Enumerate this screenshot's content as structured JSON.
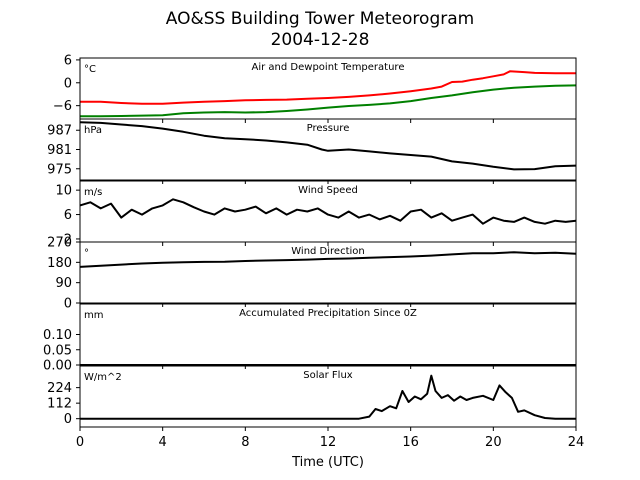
{
  "title": {
    "line1": "AO&SS Building Tower Meteorogram",
    "line2": "2004-12-28"
  },
  "x_axis": {
    "label": "Time (UTC)",
    "range": [
      0,
      24
    ],
    "ticks": [
      0,
      4,
      8,
      12,
      16,
      20,
      24
    ],
    "tick_labels": [
      "0",
      "4",
      "8",
      "12",
      "16",
      "20",
      "24"
    ]
  },
  "colors": {
    "temperature": "#ff0000",
    "dewpoint": "#008000",
    "line": "#000000"
  },
  "chart_data": [
    {
      "type": "line",
      "title": "Air and Dewpoint Temperature",
      "unit_label": "°C",
      "ylim": [
        -9.5,
        6.5
      ],
      "yticks": [
        -6,
        0,
        6
      ],
      "ytick_labels": [
        "−6",
        "0",
        "6"
      ],
      "series": [
        {
          "color": "#ff0000",
          "x": [
            0,
            1,
            2,
            3,
            4,
            5,
            6,
            7,
            8,
            9,
            10,
            11,
            12,
            13,
            14,
            15,
            16,
            17,
            17.5,
            18,
            18.5,
            19,
            19.5,
            20,
            20.5,
            20.8,
            21.5,
            22,
            23,
            24
          ],
          "values": [
            -5.0,
            -5.0,
            -5.3,
            -5.5,
            -5.5,
            -5.2,
            -5.0,
            -4.8,
            -4.6,
            -4.5,
            -4.4,
            -4.2,
            -4.0,
            -3.7,
            -3.3,
            -2.8,
            -2.2,
            -1.5,
            -1.0,
            0.2,
            0.3,
            0.8,
            1.2,
            1.7,
            2.2,
            3.0,
            2.8,
            2.6,
            2.5,
            2.5
          ]
        },
        {
          "color": "#008000",
          "x": [
            0,
            1,
            2,
            3,
            4,
            5,
            6,
            7,
            8,
            9,
            10,
            11,
            12,
            13,
            14,
            15,
            16,
            17,
            18,
            19,
            20,
            21,
            22,
            23,
            24
          ],
          "values": [
            -8.8,
            -8.8,
            -8.7,
            -8.6,
            -8.5,
            -8.0,
            -7.8,
            -7.7,
            -7.8,
            -7.7,
            -7.4,
            -7.0,
            -6.5,
            -6.1,
            -5.8,
            -5.4,
            -4.8,
            -4.0,
            -3.3,
            -2.5,
            -1.8,
            -1.3,
            -1.0,
            -0.8,
            -0.7
          ]
        }
      ]
    },
    {
      "type": "line",
      "title": "Pressure",
      "unit_label": "hPa",
      "ylim": [
        971.5,
        990.5
      ],
      "yticks": [
        975,
        981,
        987
      ],
      "ytick_labels": [
        "975",
        "981",
        "987"
      ],
      "series": [
        {
          "color": "#000000",
          "x": [
            0,
            1,
            2,
            3,
            4,
            5,
            6,
            7,
            8,
            9,
            10,
            11,
            11.7,
            12,
            13,
            14,
            15,
            16,
            17,
            18,
            19,
            20,
            21,
            22,
            23,
            24
          ],
          "values": [
            989.5,
            989.3,
            988.8,
            988.3,
            987.5,
            986.5,
            985.3,
            984.5,
            984.2,
            983.8,
            983.2,
            982.5,
            981.0,
            980.6,
            981.0,
            980.4,
            979.8,
            979.3,
            978.8,
            977.3,
            976.6,
            975.6,
            974.8,
            974.9,
            975.8,
            976.0
          ]
        }
      ]
    },
    {
      "type": "line",
      "title": "Wind Speed",
      "unit_label": "m/s",
      "ylim": [
        1.5,
        11.5
      ],
      "yticks": [
        2,
        6,
        10
      ],
      "ytick_labels": [
        "2",
        "6",
        "10"
      ],
      "series": [
        {
          "color": "#000000",
          "x": [
            0,
            0.5,
            1,
            1.5,
            2,
            2.5,
            3,
            3.5,
            4,
            4.5,
            5,
            5.5,
            6,
            6.5,
            7,
            7.5,
            8,
            8.5,
            9,
            9.5,
            10,
            10.5,
            11,
            11.5,
            12,
            12.5,
            13,
            13.5,
            14,
            14.5,
            15,
            15.5,
            16,
            16.5,
            17,
            17.5,
            18,
            18.5,
            19,
            19.5,
            20,
            20.5,
            21,
            21.5,
            22,
            22.5,
            23,
            23.5,
            24
          ],
          "values": [
            7.5,
            8.0,
            7.0,
            7.8,
            5.5,
            6.8,
            6.0,
            7.0,
            7.5,
            8.5,
            8.0,
            7.2,
            6.5,
            6.0,
            7.0,
            6.5,
            6.8,
            7.3,
            6.2,
            7.0,
            6.0,
            6.8,
            6.5,
            7.0,
            6.0,
            5.5,
            6.5,
            5.5,
            6.0,
            5.2,
            5.8,
            5.0,
            6.5,
            6.8,
            5.5,
            6.2,
            5.0,
            5.5,
            6.0,
            4.5,
            5.5,
            5.0,
            4.8,
            5.5,
            4.8,
            4.5,
            5.0,
            4.8,
            5.0
          ]
        }
      ]
    },
    {
      "type": "line",
      "title": "Wind Direction",
      "unit_label": "°",
      "ylim": [
        0,
        270
      ],
      "yticks": [
        0,
        90,
        180,
        270
      ],
      "ytick_labels": [
        "0",
        "90",
        "180",
        "270"
      ],
      "series": [
        {
          "color": "#000000",
          "x": [
            0,
            1,
            2,
            3,
            4,
            5,
            6,
            7,
            8,
            9,
            10,
            11,
            12,
            13,
            14,
            15,
            16,
            17,
            18,
            19,
            20,
            21,
            22,
            23,
            24
          ],
          "values": [
            160,
            165,
            170,
            175,
            178,
            180,
            182,
            183,
            186,
            188,
            190,
            192,
            195,
            197,
            200,
            203,
            206,
            210,
            215,
            220,
            220,
            225,
            220,
            222,
            218
          ]
        }
      ]
    },
    {
      "type": "line",
      "title": "Accumulated Precipitation Since 0Z",
      "unit_label": "mm",
      "ylim": [
        0,
        0.2
      ],
      "yticks": [
        0.0,
        0.05,
        0.1
      ],
      "ytick_labels": [
        "0.00",
        "0.05",
        "0.10"
      ],
      "series": [
        {
          "color": "#000000",
          "x": [
            0,
            24
          ],
          "values": [
            0,
            0
          ]
        }
      ]
    },
    {
      "type": "line",
      "title": "Solar Flux",
      "unit_label": "W/m^2",
      "ylim": [
        -60,
        380
      ],
      "yticks": [
        0,
        112,
        224
      ],
      "ytick_labels": [
        "0",
        "112",
        "224"
      ],
      "series": [
        {
          "color": "#000000",
          "x": [
            0,
            13.5,
            14,
            14.3,
            14.6,
            15,
            15.3,
            15.6,
            15.9,
            16.2,
            16.5,
            16.8,
            17.0,
            17.2,
            17.5,
            17.8,
            18.1,
            18.4,
            18.7,
            19,
            19.5,
            20,
            20.3,
            20.6,
            20.9,
            21.2,
            21.5,
            22,
            22.5,
            23,
            24
          ],
          "values": [
            0,
            0,
            15,
            70,
            55,
            90,
            75,
            200,
            120,
            160,
            140,
            180,
            310,
            200,
            150,
            170,
            130,
            160,
            135,
            150,
            165,
            135,
            240,
            190,
            150,
            50,
            60,
            25,
            5,
            0,
            0
          ]
        }
      ]
    }
  ]
}
